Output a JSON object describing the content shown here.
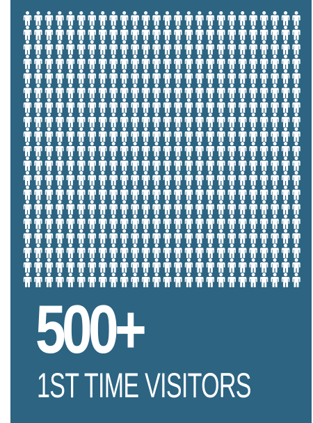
{
  "infographic": {
    "icon_grid": {
      "icon": "person-icon",
      "rows": 19,
      "columns": 26,
      "color": "#ffffff"
    },
    "stat": "500+",
    "caption": "1ST TIME VISITORS"
  },
  "colors": {
    "background": "#2c6482",
    "text": "#ffffff"
  }
}
